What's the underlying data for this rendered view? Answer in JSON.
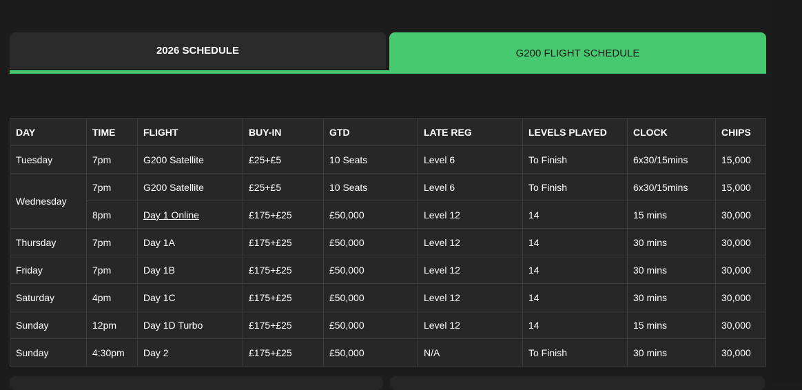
{
  "tabs": [
    {
      "label": "2026 SCHEDULE",
      "active": false
    },
    {
      "label": "G200 FLIGHT SCHEDULE",
      "active": true
    }
  ],
  "accent": "#46c96f",
  "table": {
    "headers": [
      "DAY",
      "TIME",
      "FLIGHT",
      "BUY-IN",
      "GTD",
      "LATE REG",
      "LEVELS PLAYED",
      "CLOCK",
      "CHIPS"
    ],
    "rows": [
      {
        "day": "Tuesday",
        "time": "7pm",
        "flight": "G200 Satellite",
        "buyin": "£25+£5",
        "gtd": "10 Seats",
        "latereg": "Level 6",
        "levels": "To Finish",
        "clock": "6x30/15mins",
        "chips": "15,000"
      },
      {
        "day": "Wednesday",
        "time": "7pm",
        "flight": "G200 Satellite",
        "buyin": "£25+£5",
        "gtd": "10 Seats",
        "latereg": "Level 6",
        "levels": "To Finish",
        "clock": "6x30/15mins",
        "chips": "15,000"
      },
      {
        "day": "",
        "time": "8pm",
        "flight": "Day 1 Online",
        "flight_link": true,
        "buyin": "£175+£25",
        "gtd": "£50,000",
        "latereg": "Level 12",
        "levels": "14",
        "clock": "15 mins",
        "chips": "30,000"
      },
      {
        "day": "Thursday",
        "time": "7pm",
        "flight": "Day 1A",
        "buyin": "£175+£25",
        "gtd": "£50,000",
        "latereg": "Level 12",
        "levels": "14",
        "clock": "30 mins",
        "chips": "30,000"
      },
      {
        "day": "Friday",
        "time": "7pm",
        "flight": "Day 1B",
        "buyin": "£175+£25",
        "gtd": "£50,000",
        "latereg": "Level 12",
        "levels": "14",
        "clock": "30 mins",
        "chips": "30,000"
      },
      {
        "day": "Saturday",
        "time": "4pm",
        "flight": "Day 1C",
        "buyin": "£175+£25",
        "gtd": "£50,000",
        "latereg": "Level 12",
        "levels": "14",
        "clock": "30 mins",
        "chips": "30,000"
      },
      {
        "day": "Sunday",
        "time": "12pm",
        "flight": "Day 1D Turbo",
        "buyin": "£175+£25",
        "gtd": "£50,000",
        "latereg": "Level 12",
        "levels": "14",
        "clock": "15 mins",
        "chips": "30,000"
      },
      {
        "day": "Sunday",
        "time": "4:30pm",
        "flight": "Day 2",
        "buyin": "£175+£25",
        "gtd": "£50,000",
        "latereg": "N/A",
        "levels": "To Finish",
        "clock": "30 mins",
        "chips": "30,000"
      }
    ]
  }
}
